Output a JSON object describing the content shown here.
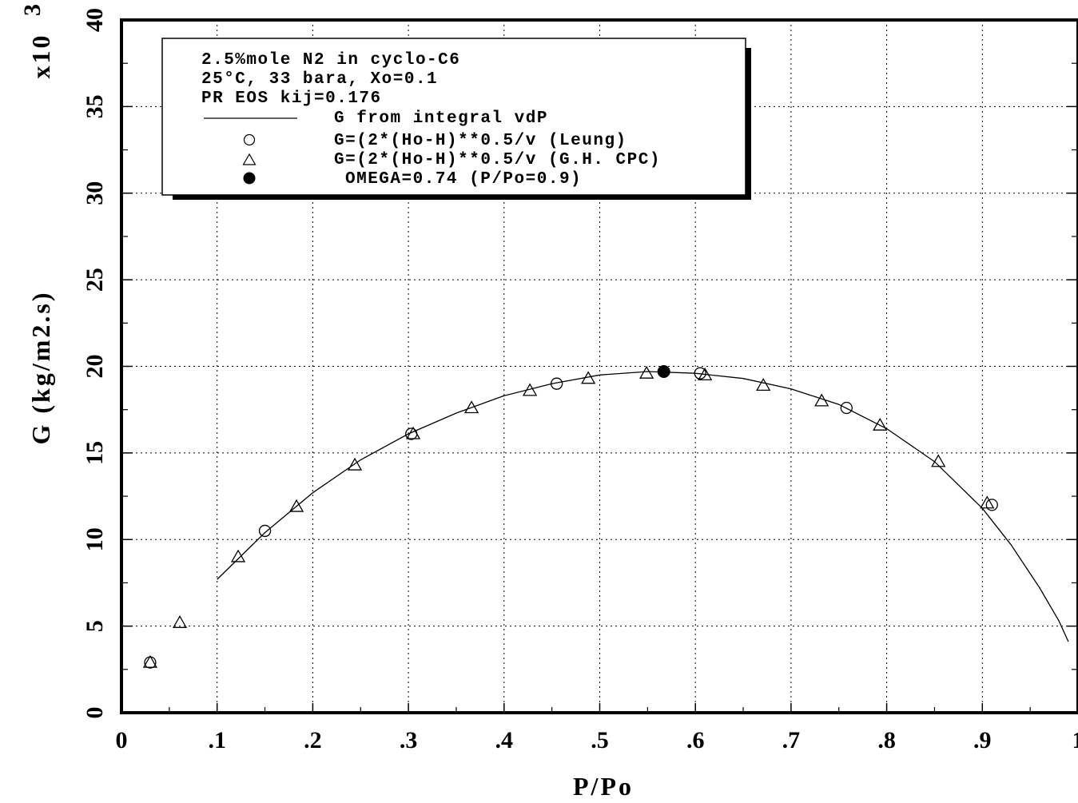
{
  "chart_data": {
    "type": "scatter",
    "xlabel": "P/Po",
    "ylabel": "G  (kg/m2.s)",
    "y_multiplier": "x10",
    "y_multiplier_exp": "3",
    "xlim": [
      0,
      1
    ],
    "ylim": [
      0,
      40
    ],
    "x_ticks": [
      0,
      0.1,
      0.2,
      0.3,
      0.4,
      0.5,
      0.6,
      0.7,
      0.8,
      0.9,
      1.0
    ],
    "x_tick_labels": [
      "0",
      ".1",
      ".2",
      ".3",
      ".4",
      ".5",
      ".6",
      ".7",
      ".8",
      ".9",
      "1"
    ],
    "y_ticks": [
      0,
      5,
      10,
      15,
      20,
      25,
      30,
      35,
      40
    ],
    "y_tick_labels": [
      "0",
      "5",
      "10",
      "15",
      "20",
      "25",
      "30",
      "35",
      "40"
    ],
    "grid": true,
    "legend_position": "top-left",
    "legend_header": [
      "2.5%mole N2 in cyclo-C6",
      "25°C, 33 bara, Xo=0.1",
      "PR EOS kij=0.176"
    ],
    "series": [
      {
        "name": "G from integral vdP",
        "marker": "line",
        "x": [
          0.1,
          0.15,
          0.2,
          0.25,
          0.3,
          0.35,
          0.4,
          0.45,
          0.5,
          0.55,
          0.6,
          0.65,
          0.7,
          0.75,
          0.8,
          0.85,
          0.9,
          0.93,
          0.96,
          0.98,
          0.99
        ],
        "y": [
          7.7,
          10.4,
          12.7,
          14.6,
          16.1,
          17.3,
          18.3,
          19.0,
          19.5,
          19.7,
          19.6,
          19.3,
          18.7,
          17.8,
          16.4,
          14.5,
          11.8,
          9.7,
          7.2,
          5.3,
          4.1
        ]
      },
      {
        "name": "G=(2*(Ho-H)**0.5/v  (Leung)",
        "marker": "circle",
        "x": [
          0.03,
          0.15,
          0.303,
          0.455,
          0.605,
          0.758,
          0.91
        ],
        "y": [
          2.9,
          10.5,
          16.1,
          19.0,
          19.6,
          17.6,
          12.0
        ]
      },
      {
        "name": "G=(2*(Ho-H)**0.5/v  (G.H. CPC)",
        "marker": "triangle",
        "x": [
          0.03,
          0.061,
          0.122,
          0.183,
          0.244,
          0.305,
          0.366,
          0.427,
          0.488,
          0.549,
          0.61,
          0.671,
          0.732,
          0.793,
          0.854,
          0.905
        ],
        "y": [
          2.9,
          5.2,
          9.0,
          11.9,
          14.3,
          16.1,
          17.6,
          18.6,
          19.3,
          19.6,
          19.5,
          18.9,
          18.0,
          16.6,
          14.5,
          12.1
        ]
      },
      {
        "name": "OMEGA=0.74  (P/Po=0.9)",
        "marker": "filled-circle",
        "x": [
          0.567
        ],
        "y": [
          19.7
        ]
      }
    ]
  }
}
